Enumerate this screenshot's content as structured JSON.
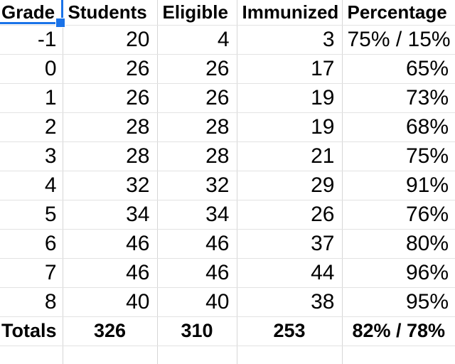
{
  "sheet": {
    "columns": [
      "Grade",
      "Students",
      "Eligible",
      "Immunized",
      "Percentage"
    ],
    "rows": [
      [
        "-1",
        "20",
        "4",
        "3",
        "75% / 15%"
      ],
      [
        "0",
        "26",
        "26",
        "17",
        "65%"
      ],
      [
        "1",
        "26",
        "26",
        "19",
        "73%"
      ],
      [
        "2",
        "28",
        "28",
        "19",
        "68%"
      ],
      [
        "3",
        "28",
        "28",
        "21",
        "75%"
      ],
      [
        "4",
        "32",
        "32",
        "29",
        "91%"
      ],
      [
        "5",
        "34",
        "34",
        "26",
        "76%"
      ],
      [
        "6",
        "46",
        "46",
        "37",
        "80%"
      ],
      [
        "7",
        "46",
        "46",
        "44",
        "96%"
      ],
      [
        "8",
        "40",
        "40",
        "38",
        "95%"
      ]
    ],
    "totals": [
      "Totals",
      "326",
      "310",
      "253",
      "82% / 78%"
    ],
    "selection": {
      "selected_cell": "Grade"
    },
    "colors": {
      "selection_blue": "#1a73e8",
      "gridline_vertical": "#d6d6d6",
      "gridline_horizontal": "#e3e3e3",
      "text": "#000000",
      "background": "#ffffff"
    }
  }
}
